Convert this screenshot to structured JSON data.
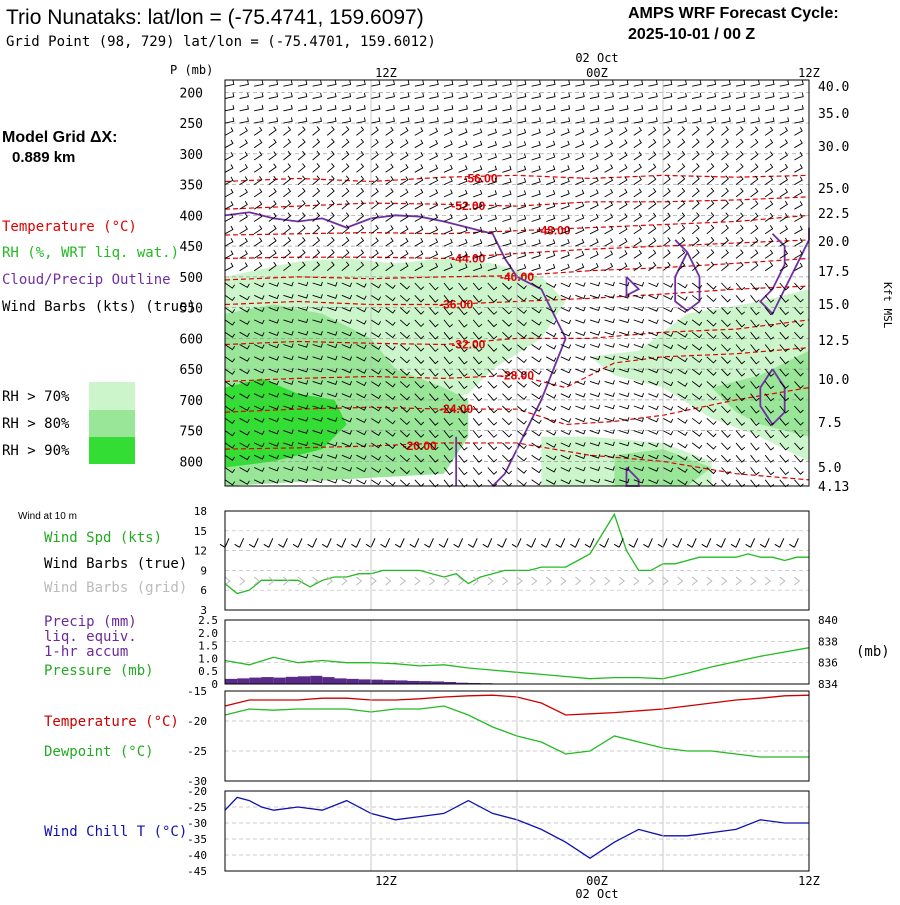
{
  "header": {
    "title": "Trio Nunataks:  lat/lon = (-75.4741, 159.6097)",
    "subtitle": "Grid Point (98, 729) lat/lon = (-75.4701, 159.6012)",
    "cycle_line1": "AMPS WRF Forecast Cycle:",
    "cycle_line2": "2025-10-01 / 00  Z"
  },
  "left_labels": {
    "p_label": "P (mb)",
    "model_grid_line1": "Model Grid ΔX:",
    "model_grid_line2": "0.889 km",
    "temperature": "Temperature (°C)",
    "rh": "RH (%, WRT liq. wat.)",
    "cloud": "Cloud/Precip Outline",
    "wind_barbs": "Wind Barbs (kts) (true)",
    "rh_levels": [
      "RH > 70%",
      "RH > 80%",
      "RH > 90%"
    ],
    "wind_at_10m": "Wind at 10 m",
    "wind_spd": "Wind Spd (kts)",
    "wind_barbs_true": "Wind Barbs (true)",
    "wind_barbs_grid": "Wind Barbs (grid)",
    "precip1": "Precip (mm)",
    "precip2": "liq. equiv.",
    "precip3": "1-hr accum",
    "pressure": "Pressure (mb)",
    "pressure_unit": "(mb)",
    "temp2": "Temperature (°C)",
    "dewpoint": "Dewpoint (°C)",
    "windchill": "Wind Chill T (°C)"
  },
  "time_axis": {
    "top_date": "02 Oct",
    "bottom_date": "02 Oct",
    "labels": [
      "12Z",
      "00Z",
      "12Z"
    ]
  },
  "right_axis": {
    "kft_label": "Kft MSL",
    "ticks": [
      "40.0",
      "35.0",
      "30.0",
      "25.0",
      "22.5",
      "20.0",
      "17.5",
      "15.0",
      "12.5",
      "10.0",
      "7.5",
      "5.0",
      "4.13"
    ]
  },
  "colors": {
    "temperature": "#e00000",
    "rh": "#22bb22",
    "cloud": "#7030a0",
    "rh70": "#ccf5cc",
    "rh80": "#99e699",
    "rh90": "#33dd33",
    "grid_barbs": "#bbbbbb",
    "windchill": "#1010b0",
    "precip": "#5a2a8a"
  },
  "chart_data": [
    {
      "type": "line",
      "name": "cross-section",
      "pressure_ticks": [
        200,
        250,
        300,
        350,
        400,
        450,
        500,
        550,
        600,
        650,
        700,
        750,
        800
      ],
      "ylim": [
        180,
        840
      ],
      "x_hours": [
        0,
        48
      ],
      "isotherm_labels": [
        {
          "value": "-56.00",
          "hour": 21,
          "p": 340
        },
        {
          "value": "-52.00",
          "hour": 20,
          "p": 385
        },
        {
          "value": "-48.00",
          "hour": 27,
          "p": 425
        },
        {
          "value": "-44.00",
          "hour": 20,
          "p": 470
        },
        {
          "value": "-40.00",
          "hour": 24,
          "p": 500
        },
        {
          "value": "-36.00",
          "hour": 19,
          "p": 545
        },
        {
          "value": "-32.00",
          "hour": 20,
          "p": 610
        },
        {
          "value": "-28.00",
          "hour": 24,
          "p": 660
        },
        {
          "value": "-24.00",
          "hour": 19,
          "p": 715
        },
        {
          "value": "-20.00",
          "hour": 16,
          "p": 775
        }
      ]
    },
    {
      "type": "line",
      "name": "wind",
      "ylim": [
        3,
        18
      ],
      "yticks": [
        3,
        6,
        9,
        12,
        15,
        18
      ],
      "hours": [
        0,
        1,
        2,
        3,
        4,
        5,
        6,
        7,
        8,
        9,
        10,
        11,
        12,
        13,
        14,
        15,
        16,
        17,
        18,
        19,
        20,
        21,
        22,
        23,
        24,
        25,
        26,
        27,
        28,
        29,
        30,
        31,
        32,
        33,
        34,
        35,
        36,
        37,
        38,
        39,
        40,
        41,
        42,
        43,
        44,
        45,
        46,
        47,
        48
      ],
      "values": [
        7,
        5.5,
        6,
        7.5,
        7.5,
        7.5,
        7.5,
        6.5,
        7.5,
        8,
        8,
        8.5,
        8.5,
        9,
        9,
        9,
        9,
        8.5,
        8,
        8.5,
        7,
        8,
        8.5,
        9,
        9,
        9,
        9.5,
        9.5,
        9.5,
        10.5,
        11.5,
        14.5,
        17.5,
        12,
        9,
        9,
        10,
        10,
        10.5,
        11,
        11,
        11,
        11,
        11.5,
        11,
        11,
        10.5,
        11,
        11
      ]
    },
    {
      "type": "line",
      "name": "precip-pressure",
      "precip_ylim": [
        0,
        2.5
      ],
      "precip_ticks": [
        "0",
        "0.5",
        "1.0",
        "1.5",
        "2.0",
        "2.5"
      ],
      "pressure_ylim": [
        834,
        840
      ],
      "pressure_ticks": [
        834,
        836,
        838,
        840
      ],
      "hours": [
        0,
        2,
        4,
        6,
        8,
        10,
        12,
        14,
        16,
        18,
        20,
        22,
        24,
        26,
        28,
        30,
        32,
        34,
        36,
        38,
        40,
        42,
        44,
        46,
        48
      ],
      "pressure": [
        836.2,
        835.8,
        836.5,
        836.0,
        836.2,
        836.0,
        836.0,
        835.9,
        835.7,
        835.8,
        835.5,
        835.3,
        835.1,
        834.9,
        834.7,
        834.5,
        834.6,
        834.6,
        834.5,
        835.0,
        835.6,
        836.1,
        836.6,
        837.0,
        837.4
      ],
      "precip_hours": [
        0,
        1,
        2,
        3,
        4,
        5,
        6,
        7,
        8,
        9,
        10,
        11,
        12,
        13,
        14,
        15,
        16,
        17,
        18,
        19,
        20,
        21,
        22,
        23,
        24
      ],
      "precip": [
        0.2,
        0.22,
        0.25,
        0.27,
        0.25,
        0.28,
        0.3,
        0.32,
        0.27,
        0.22,
        0.2,
        0.18,
        0.17,
        0.15,
        0.14,
        0.12,
        0.11,
        0.1,
        0.08,
        0.05,
        0.04,
        0.03,
        0.02,
        0.01,
        0.0
      ]
    },
    {
      "type": "line",
      "name": "temp-dewpoint",
      "ylim": [
        -30,
        -15
      ],
      "yticks": [
        "-15",
        "-20",
        "-25",
        "-30"
      ],
      "hours": [
        0,
        2,
        4,
        6,
        8,
        10,
        12,
        14,
        16,
        18,
        20,
        22,
        24,
        26,
        28,
        30,
        32,
        34,
        36,
        38,
        40,
        42,
        44,
        46,
        48
      ],
      "temperature": [
        -17.5,
        -16.5,
        -16.5,
        -16.5,
        -16.2,
        -16.2,
        -16.5,
        -16.5,
        -16.3,
        -16.0,
        -15.8,
        -15.7,
        -16.0,
        -17.0,
        -19.0,
        -18.8,
        -18.6,
        -18.3,
        -18.0,
        -17.5,
        -17.0,
        -16.5,
        -16.2,
        -15.8,
        -15.7
      ],
      "dewpoint": [
        -19.0,
        -18.0,
        -18.2,
        -18.0,
        -18.0,
        -18.0,
        -18.5,
        -18.0,
        -18.0,
        -17.5,
        -19.0,
        -21.0,
        -22.5,
        -23.5,
        -25.5,
        -25.0,
        -22.5,
        -23.5,
        -24.5,
        -25.0,
        -25.0,
        -25.5,
        -26.0,
        -26.0,
        -26.0
      ]
    },
    {
      "type": "line",
      "name": "wind-chill",
      "ylim": [
        -45,
        -20
      ],
      "yticks": [
        "-20",
        "-25",
        "-30",
        "-35",
        "-40",
        "-45"
      ],
      "hours": [
        0,
        1,
        2,
        3,
        4,
        6,
        8,
        10,
        12,
        14,
        16,
        18,
        20,
        22,
        24,
        26,
        28,
        30,
        32,
        34,
        36,
        38,
        40,
        42,
        44,
        46,
        48
      ],
      "values": [
        -26,
        -22,
        -23,
        -25,
        -26,
        -25,
        -26,
        -23,
        -27,
        -29,
        -28,
        -27,
        -23,
        -27,
        -29,
        -32,
        -36,
        -41,
        -36,
        -32,
        -34,
        -34,
        -33,
        -32,
        -29,
        -30,
        -30
      ]
    }
  ]
}
